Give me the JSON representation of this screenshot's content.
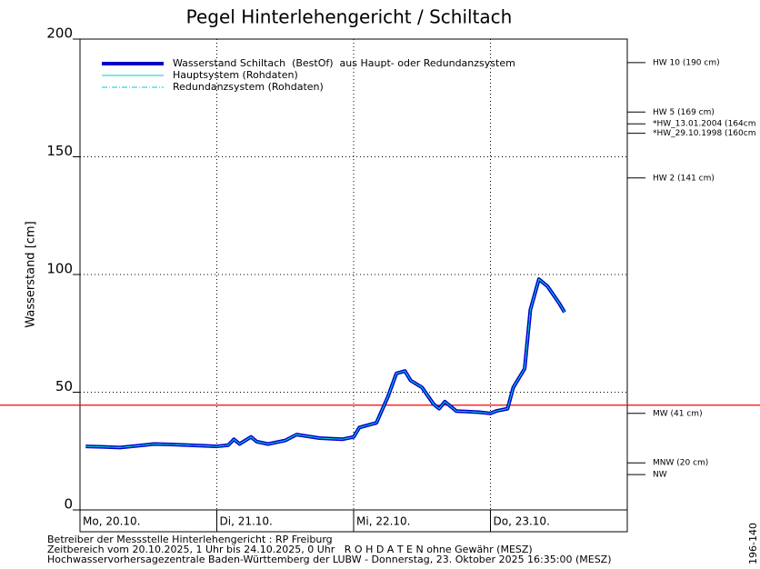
{
  "chart_data": {
    "type": "line",
    "title": "Pegel Hinterlehengericht / Schiltach",
    "y_label": "Wasserstand [cm]",
    "x": [
      1,
      4,
      7,
      10,
      13,
      16,
      19,
      22,
      24,
      26,
      27,
      28,
      30,
      31,
      33,
      36,
      38,
      42,
      46,
      48,
      49,
      52,
      54,
      55.5,
      57,
      58,
      60,
      62,
      63,
      64,
      66,
      70,
      72,
      73,
      75,
      76,
      78,
      79,
      80.5,
      82,
      84,
      85
    ],
    "series": [
      {
        "name": "Wasserstand Schiltach  (BestOf)  aus Haupt- oder Redundanzsystem",
        "color": "#0000cc",
        "style": "thick",
        "values": [
          27,
          26.8,
          26.5,
          27.2,
          28,
          27.8,
          27.5,
          27.2,
          27,
          27.5,
          30,
          28,
          31,
          29,
          28,
          29.5,
          32,
          30.5,
          30,
          31,
          35,
          37,
          48,
          58,
          59,
          55,
          52,
          45,
          43,
          46,
          42,
          41.5,
          41,
          42,
          43,
          52,
          60,
          85,
          98,
          95,
          88,
          84
        ]
      },
      {
        "name": "Hauptsystem (Rohdaten)",
        "color": "#00cccc",
        "style": "solid",
        "values": [
          27,
          26.8,
          26.5,
          27.2,
          28,
          27.8,
          27.5,
          27.2,
          27,
          27.5,
          30,
          28,
          31,
          29,
          28,
          29.5,
          32,
          30.5,
          30,
          31,
          35,
          37,
          48,
          58,
          59,
          55,
          52,
          45,
          43,
          46,
          42,
          41.5,
          41,
          42,
          43,
          52,
          60,
          85,
          98,
          95,
          88,
          84
        ]
      },
      {
        "name": "Redundanzsystem (Rohdaten)",
        "color": "#00cccc",
        "style": "dashdot",
        "values": [
          27,
          26.8,
          26.5,
          27.2,
          28,
          27.8,
          27.5,
          27.2,
          27,
          27.5,
          30,
          28,
          31,
          29,
          28,
          29.5,
          32,
          30.5,
          30,
          31,
          35,
          37,
          48,
          58,
          59,
          55,
          52,
          45,
          43,
          46,
          42,
          41.5,
          41,
          42,
          43,
          52,
          60,
          85,
          98,
          95,
          88,
          84
        ]
      }
    ],
    "xlim": [
      0,
      96
    ],
    "xticks": [
      {
        "value": 0,
        "label": "Mo, 20.10."
      },
      {
        "value": 24,
        "label": "Di, 21.10."
      },
      {
        "value": 48,
        "label": "Mi, 22.10."
      },
      {
        "value": 72,
        "label": "Do, 23.10."
      }
    ],
    "ylim": [
      0,
      200
    ],
    "yticks": [
      0,
      50,
      100,
      150,
      200
    ],
    "grid": true,
    "alert_line": {
      "value": 44.5,
      "color": "#ff0000"
    },
    "reference_levels": [
      {
        "label": "HW 10 (190 cm)",
        "value": 190
      },
      {
        "label": "HW 5 (169 cm)",
        "value": 169
      },
      {
        "label": "*HW_13.01.2004 (164cm",
        "value": 164
      },
      {
        "label": "*HW_29.10.1998 (160cm",
        "value": 160
      },
      {
        "label": "HW 2 (141 cm)",
        "value": 141
      },
      {
        "label": "MW (41 cm)",
        "value": 41
      },
      {
        "label": "MNW (20 cm)",
        "value": 20
      },
      {
        "label": "NW",
        "value": 15
      }
    ],
    "footer": [
      "Betreiber der Messstelle Hinterlehengericht : RP Freiburg",
      "Zeitbereich vom 20.10.2025, 1 Uhr bis 24.10.2025, 0 Uhr   R O H D A T E N ohne Gewähr (MESZ)",
      "Hochwasservorhersagezentrale Baden-Württemberg der LUBW - Donnerstag, 23. Oktober 2025 16:35:00 (MESZ)"
    ],
    "side_note": "196-140"
  }
}
